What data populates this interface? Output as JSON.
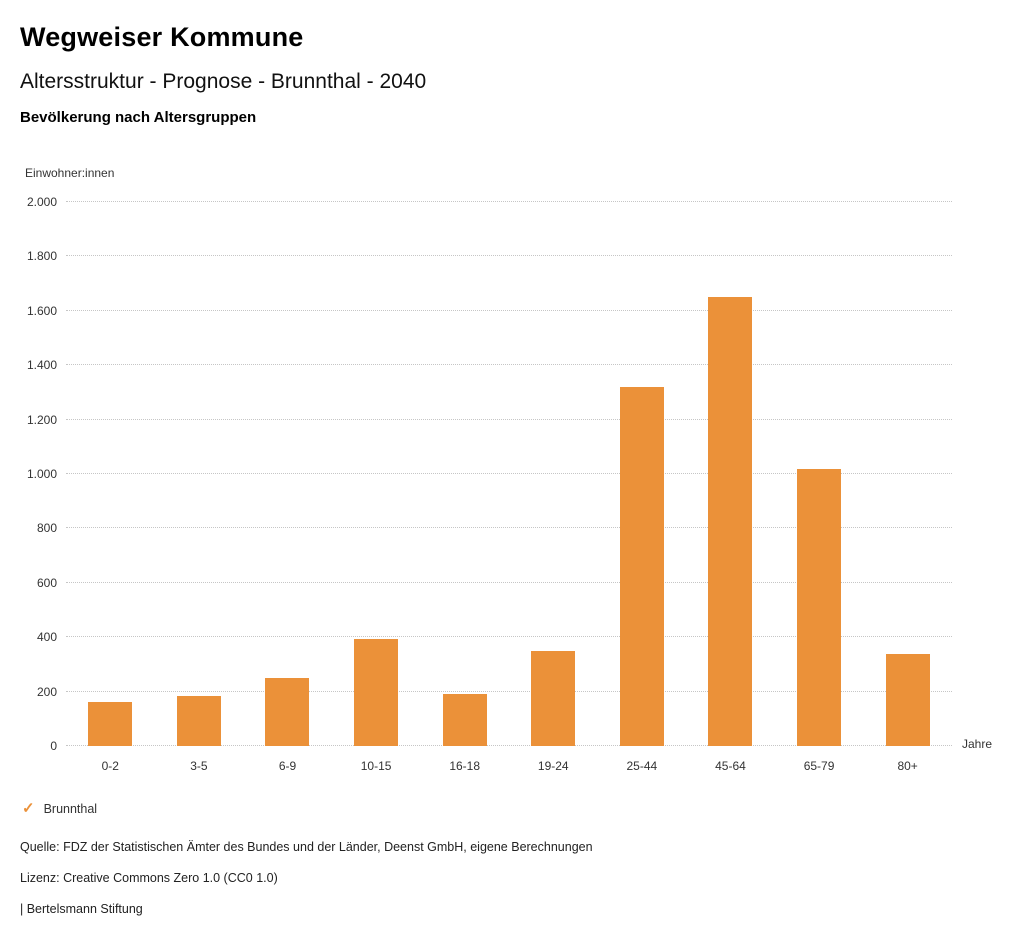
{
  "header": {
    "title": "Wegweiser Kommune",
    "subtitle": "Altersstruktur - Prognose - Brunnthal - 2040",
    "chart_title": "Bevölkerung nach Altersgruppen"
  },
  "chart_data": {
    "type": "bar",
    "title": "Bevölkerung nach Altersgruppen",
    "ylabel": "Einwohner:innen",
    "xlabel": "Jahre",
    "categories": [
      "0-2",
      "3-5",
      "6-9",
      "10-15",
      "16-18",
      "19-24",
      "25-44",
      "45-64",
      "65-79",
      "80+"
    ],
    "values": [
      160,
      185,
      250,
      395,
      190,
      350,
      1320,
      1650,
      1020,
      340
    ],
    "series_name": "Brunnthal",
    "ylim": [
      0,
      2000
    ],
    "ytick_values": [
      0,
      200,
      400,
      600,
      800,
      1000,
      1200,
      1400,
      1600,
      1800,
      2000
    ],
    "ytick_labels": [
      "0",
      "200",
      "400",
      "600",
      "800",
      "1.000",
      "1.200",
      "1.400",
      "1.600",
      "1.800",
      "2.000"
    ],
    "bar_color": "#EB9139",
    "grid": "horizontal-dotted",
    "legend_position": "bottom-left"
  },
  "legend": {
    "check_icon": "✓",
    "items": [
      {
        "label": "Brunnthal",
        "color": "#EB9139"
      }
    ]
  },
  "footer": {
    "source": "Quelle: FDZ der Statistischen Ämter des Bundes und der Länder, Deenst GmbH, eigene Berechnungen",
    "license": "Lizenz: Creative Commons Zero 1.0 (CC0 1.0)",
    "attribution": "| Bertelsmann Stiftung"
  }
}
